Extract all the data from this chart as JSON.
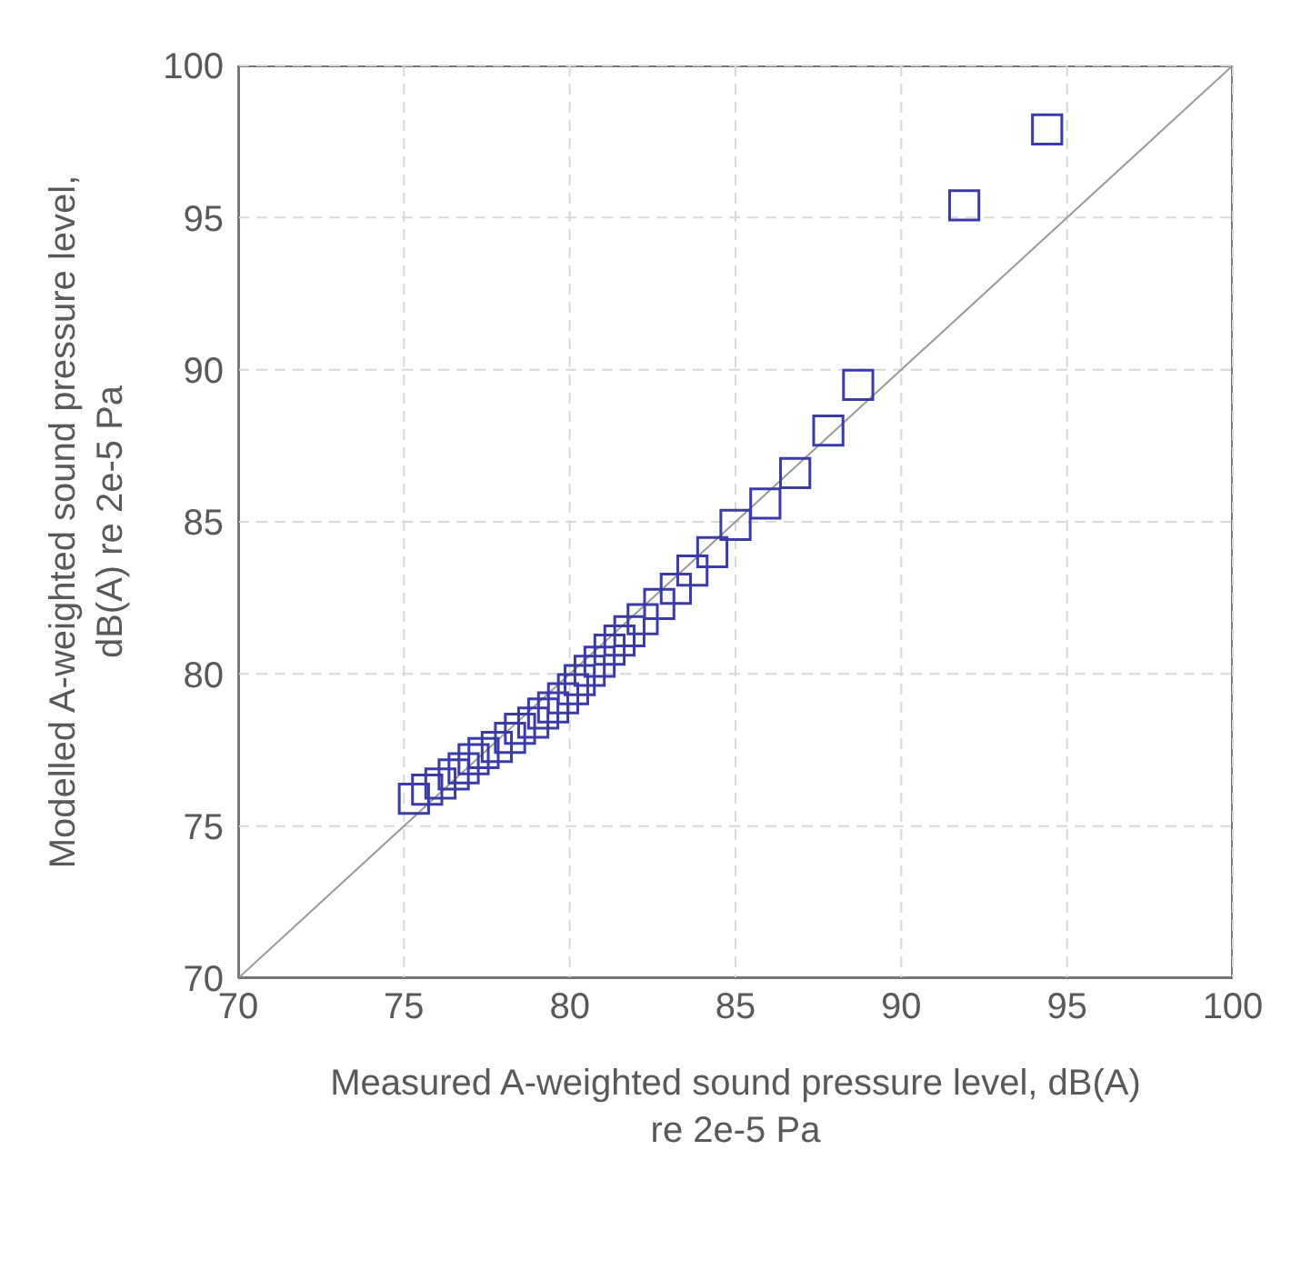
{
  "chart_data": {
    "type": "scatter",
    "xlabel": "Measured A-weighted sound pressure level, dB(A) re 2e-5 Pa",
    "ylabel": "Modelled A-weighted sound pressure level, dB(A) re 2e-5 Pa",
    "xlim": [
      70,
      100
    ],
    "ylim": [
      70,
      100
    ],
    "xticks": [
      70,
      75,
      80,
      85,
      90,
      95,
      100
    ],
    "yticks": [
      70,
      75,
      80,
      85,
      90,
      95,
      100
    ],
    "grid": true,
    "series": [
      {
        "type": "line",
        "color": "#999999",
        "x": [
          70,
          100
        ],
        "values": [
          70,
          100
        ]
      },
      {
        "marker": "square",
        "color": "#3a3aa8",
        "x": [
          75.3,
          75.7,
          76.1,
          76.5,
          76.8,
          77.1,
          77.4,
          77.8,
          78.2,
          78.5,
          78.9,
          79.2,
          79.5,
          79.8,
          80.1,
          80.3,
          80.6,
          80.9,
          81.2,
          81.5,
          81.8,
          82.2,
          82.7,
          83.2,
          83.7,
          84.3,
          85.0,
          85.9,
          86.8,
          87.8,
          88.7,
          91.9,
          94.4
        ],
        "values": [
          75.9,
          76.2,
          76.4,
          76.7,
          76.9,
          77.2,
          77.4,
          77.6,
          77.9,
          78.2,
          78.4,
          78.7,
          78.9,
          79.2,
          79.5,
          79.8,
          80.1,
          80.4,
          80.8,
          81.1,
          81.4,
          81.8,
          82.3,
          82.8,
          83.4,
          84.0,
          84.9,
          85.6,
          86.6,
          88.0,
          89.5,
          95.4,
          97.9
        ]
      }
    ]
  }
}
